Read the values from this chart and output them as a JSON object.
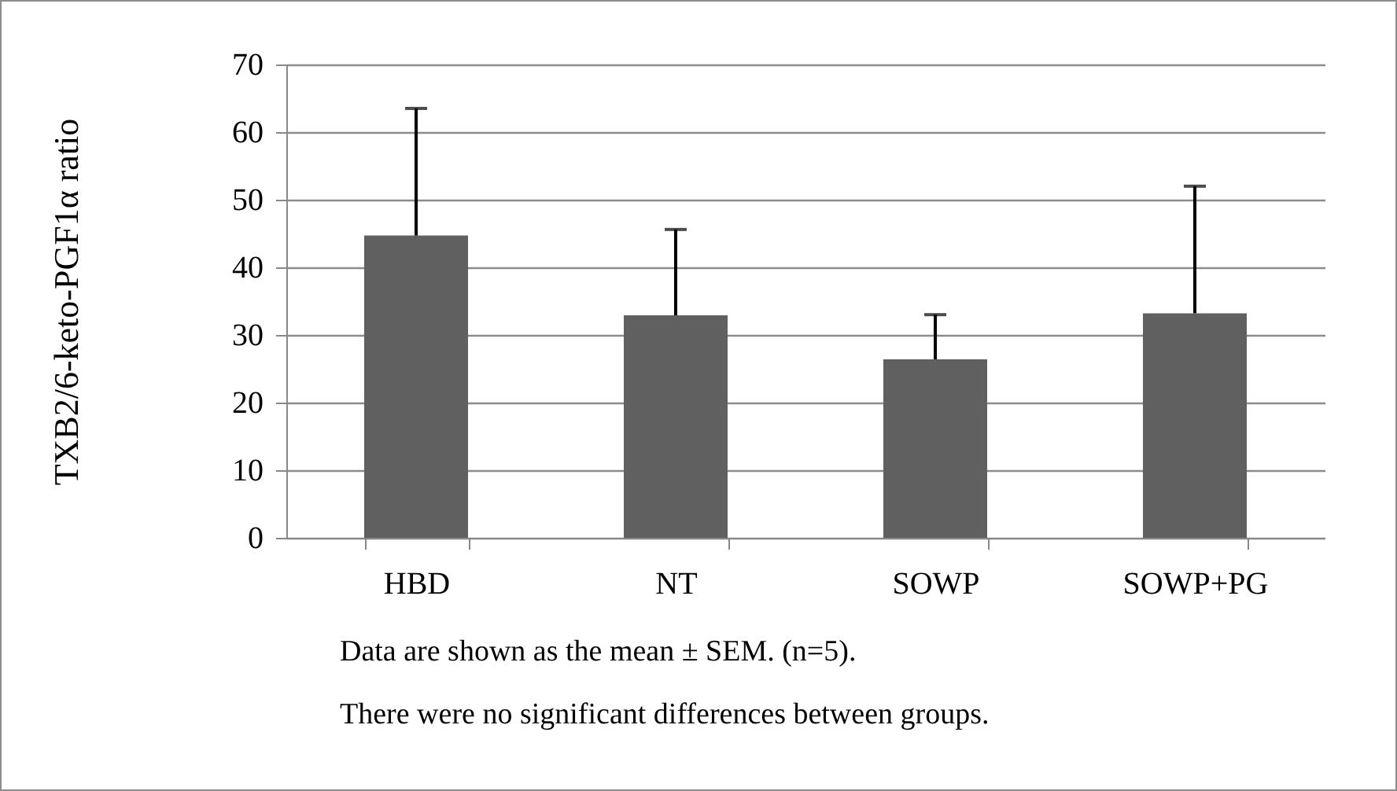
{
  "chart_data": {
    "type": "bar",
    "ylabel": "TXB2/6-keto-PGF1α ratio",
    "categories": [
      "HBD",
      "NT",
      "SOWP",
      "SOWP+PG"
    ],
    "values": [
      44.7,
      32.9,
      26.4,
      33.2
    ],
    "errors": [
      [
        44.7,
        63.5
      ],
      [
        32.9,
        45.6
      ],
      [
        26.4,
        33.0
      ],
      [
        33.2,
        52.0
      ]
    ],
    "color": "#606060",
    "ylim": [
      0,
      70
    ],
    "yticks": [
      0,
      10,
      20,
      30,
      40,
      50,
      60,
      70
    ],
    "grid": "y",
    "annotations": [
      "Data are shown as the mean ± SEM. (n=5).",
      "There were no significant differences between groups."
    ]
  }
}
